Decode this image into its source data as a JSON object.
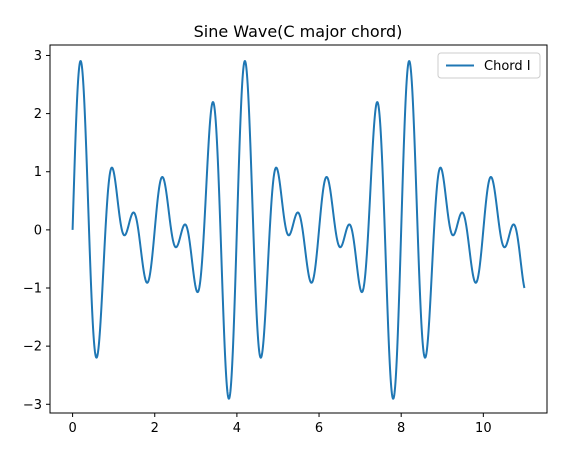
{
  "chart_data": {
    "type": "line",
    "title": "Sine Wave(C major chord)",
    "xlabel": "",
    "ylabel": "",
    "xlim": [
      -0.55,
      11.55
    ],
    "ylim": [
      -3.15,
      3.18
    ],
    "x_ticks": [
      0,
      2,
      4,
      6,
      8,
      10
    ],
    "y_ticks": [
      -3,
      -2,
      -1,
      0,
      1,
      2,
      3
    ],
    "x_tick_labels": [
      "0",
      "2",
      "4",
      "6",
      "8",
      "10"
    ],
    "y_tick_labels": [
      "−3",
      "−2",
      "−1",
      "0",
      "1",
      "2",
      "3"
    ],
    "grid": false,
    "legend_position": "top-right",
    "series": [
      {
        "name": "Chord I",
        "color": "#1f77b4",
        "frequencies": [
          1.0,
          1.25,
          1.5
        ],
        "amplitude_each": 1.0,
        "x_start": 0,
        "x_end": 11
      }
    ]
  }
}
